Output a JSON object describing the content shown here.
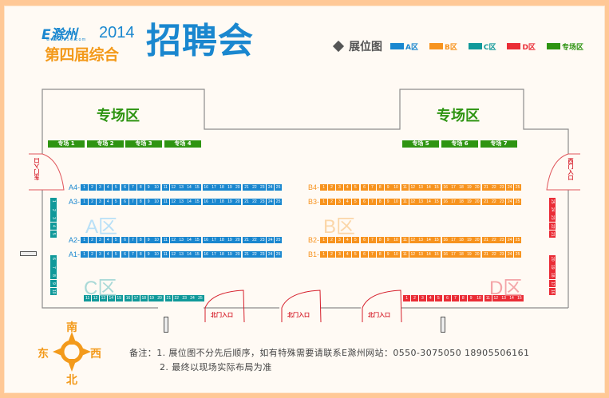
{
  "header": {
    "logo_brand": "E滁州",
    "logo_url": "www.0550.com",
    "logo_year": "2014",
    "logo_subtitle": "第四届综合",
    "title": "招聘会"
  },
  "legend": {
    "title": "展位图",
    "items": [
      {
        "label": "A区",
        "color": "#1a87cf"
      },
      {
        "label": "B区",
        "color": "#f7931e"
      },
      {
        "label": "C区",
        "color": "#10999a"
      },
      {
        "label": "D区",
        "color": "#ea2d36"
      },
      {
        "label": "专场区",
        "color": "#2e9412"
      }
    ]
  },
  "special_zones": {
    "title": "专场区",
    "left": [
      "专场 1",
      "专场 2",
      "专场 3",
      "专场 4"
    ],
    "right": [
      "专场 5",
      "专场 6",
      "专场 7"
    ]
  },
  "zones": {
    "A": {
      "label": "A区",
      "rows": [
        {
          "label": "A4-",
          "booths": [
            "1",
            "2",
            "3",
            "4",
            "5",
            "6",
            "7",
            "8",
            "9",
            "10",
            "11",
            "12",
            "13",
            "14",
            "15",
            "16",
            "17",
            "18",
            "19",
            "20",
            "21",
            "22",
            "23",
            "24",
            "25"
          ]
        },
        {
          "label": "A3-",
          "booths": [
            "1",
            "2",
            "3",
            "4",
            "5",
            "6",
            "7",
            "8",
            "9",
            "10",
            "11",
            "12",
            "13",
            "14",
            "15",
            "16",
            "17",
            "18",
            "19",
            "20",
            "21",
            "22",
            "23",
            "24",
            "25"
          ]
        },
        {
          "label": "A2-",
          "booths": [
            "1",
            "2",
            "3",
            "4",
            "5",
            "6",
            "7",
            "8",
            "9",
            "10",
            "11",
            "12",
            "13",
            "14",
            "15",
            "16",
            "17",
            "18",
            "19",
            "20",
            "21",
            "22",
            "23",
            "24",
            "25"
          ]
        },
        {
          "label": "A1-",
          "booths": [
            "1",
            "2",
            "3",
            "4",
            "5",
            "6",
            "7",
            "8",
            "9",
            "10",
            "11",
            "12",
            "13",
            "14",
            "15",
            "16",
            "17",
            "18",
            "19",
            "20",
            "21",
            "22",
            "23",
            "24",
            "25"
          ]
        }
      ]
    },
    "B": {
      "label": "B区",
      "rows": [
        {
          "label": "B4-",
          "booths": [
            "1",
            "2",
            "3",
            "4",
            "5",
            "6",
            "7",
            "8",
            "9",
            "10",
            "11",
            "12",
            "13",
            "14",
            "15",
            "16",
            "17",
            "18",
            "19",
            "20",
            "21",
            "22",
            "23",
            "24",
            "25"
          ]
        },
        {
          "label": "B3-",
          "booths": [
            "1",
            "2",
            "3",
            "4",
            "5",
            "6",
            "7",
            "8",
            "9",
            "10",
            "11",
            "12",
            "13",
            "14",
            "15",
            "16",
            "17",
            "18",
            "19",
            "20",
            "21",
            "22",
            "23",
            "24",
            "25"
          ]
        },
        {
          "label": "B2-",
          "booths": [
            "1",
            "2",
            "3",
            "4",
            "5",
            "6",
            "7",
            "8",
            "9",
            "10",
            "11",
            "12",
            "13",
            "14",
            "15",
            "16",
            "17",
            "18",
            "19",
            "20",
            "21",
            "22",
            "23",
            "24",
            "25"
          ]
        },
        {
          "label": "B1-",
          "booths": [
            "1",
            "2",
            "3",
            "4",
            "5",
            "6",
            "7",
            "8",
            "9",
            "10",
            "11",
            "12",
            "13",
            "14",
            "15",
            "16",
            "17",
            "18",
            "19",
            "20",
            "21",
            "22",
            "23",
            "24",
            "25"
          ]
        }
      ]
    },
    "C": {
      "label": "C区",
      "col_top": [
        "1",
        "2",
        "3",
        "4",
        "5"
      ],
      "col_bottom": [
        "6",
        "7",
        "8",
        "9",
        "10"
      ],
      "row": [
        "11",
        "12",
        "13",
        "14",
        "15",
        "16",
        "17",
        "18",
        "19",
        "20",
        "21",
        "22",
        "23",
        "24",
        "25"
      ]
    },
    "D": {
      "label": "D区",
      "row": [
        "1",
        "2",
        "3",
        "4",
        "5",
        "6",
        "7",
        "8",
        "9",
        "10",
        "11",
        "12",
        "13",
        "14",
        "15"
      ],
      "col_top": [
        "25",
        "24",
        "23",
        "22",
        "21"
      ],
      "col_bottom": [
        "20",
        "19",
        "18",
        "17",
        "16"
      ]
    }
  },
  "entrances": {
    "east": "东门入口",
    "west": "西门入口",
    "north": [
      "北门入口",
      "北门入口",
      "北门入口"
    ]
  },
  "compass": {
    "south": "南",
    "east": "东",
    "west": "西",
    "north": "北"
  },
  "notes": {
    "line1": "备注：1. 展位图不分先后顺序，如有特殊需要请联系E滁州网站：0550-3075050  18905506161",
    "line2": "2. 最终以现场实际布局为准"
  }
}
